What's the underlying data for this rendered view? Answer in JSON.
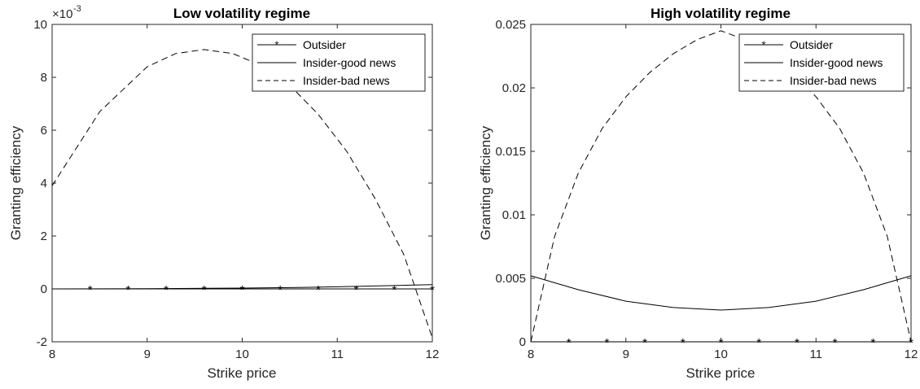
{
  "chart_data": [
    {
      "type": "line",
      "title": "Low volatility regime",
      "xlabel": "Strike price",
      "ylabel": "Granting efficiency",
      "xlim": [
        8,
        12
      ],
      "ylim": [
        -2,
        10
      ],
      "y_scale_exponent_label": "×10",
      "y_scale_exponent_power": "-3",
      "xticks": [
        8,
        9,
        10,
        11,
        12
      ],
      "xtick_labels": [
        "8",
        "9",
        "10",
        "11",
        "12"
      ],
      "yticks": [
        -2,
        0,
        2,
        4,
        6,
        8,
        10
      ],
      "ytick_labels": [
        "-2",
        "0",
        "2",
        "4",
        "6",
        "8",
        "10"
      ],
      "legend_position": "top-right",
      "grid": false,
      "series": [
        {
          "name": "Outsider",
          "style": "solid-asterisk",
          "x": [
            8.0,
            8.4,
            8.8,
            9.2,
            9.6,
            10.0,
            10.4,
            10.8,
            11.2,
            11.6,
            12.0
          ],
          "y": [
            0,
            0,
            0,
            0,
            0,
            0,
            0,
            0,
            0,
            0,
            0
          ]
        },
        {
          "name": "Insider-good news",
          "style": "solid",
          "x": [
            8.0,
            9.0,
            10.0,
            10.5,
            11.0,
            11.5,
            12.0
          ],
          "y": [
            0,
            0.01,
            0.03,
            0.05,
            0.08,
            0.12,
            0.16
          ]
        },
        {
          "name": "Insider-bad news",
          "style": "dashed",
          "x": [
            8.0,
            8.5,
            9.0,
            9.3,
            9.6,
            9.9,
            10.2,
            10.5,
            10.8,
            11.1,
            11.4,
            11.7,
            12.0
          ],
          "y": [
            3.9,
            6.7,
            8.4,
            8.9,
            9.05,
            8.9,
            8.45,
            7.7,
            6.6,
            5.2,
            3.4,
            1.3,
            -1.85
          ]
        }
      ]
    },
    {
      "type": "line",
      "title": "High volatility regime",
      "xlabel": "Strike price",
      "ylabel": "Granting efficiency",
      "xlim": [
        8,
        12
      ],
      "ylim": [
        0,
        0.025
      ],
      "xticks": [
        8,
        9,
        10,
        11,
        12
      ],
      "xtick_labels": [
        "8",
        "9",
        "10",
        "11",
        "12"
      ],
      "yticks": [
        0,
        0.005,
        0.01,
        0.015,
        0.02,
        0.025
      ],
      "ytick_labels": [
        "0",
        "0.005",
        "0.01",
        "0.015",
        "0.02",
        "0.025"
      ],
      "legend_position": "top-right",
      "grid": false,
      "series": [
        {
          "name": "Outsider",
          "style": "solid-asterisk",
          "x": [
            8.0,
            8.4,
            8.8,
            9.2,
            9.6,
            10.0,
            10.4,
            10.8,
            11.2,
            11.6,
            12.0
          ],
          "y": [
            0,
            0,
            0,
            0,
            0,
            0,
            0,
            0,
            0,
            0,
            0
          ]
        },
        {
          "name": "Insider-good news",
          "style": "solid",
          "x": [
            8.0,
            8.5,
            9.0,
            9.5,
            10.0,
            10.5,
            11.0,
            11.5,
            12.0
          ],
          "y": [
            0.0052,
            0.0041,
            0.0032,
            0.0027,
            0.0025,
            0.0027,
            0.0032,
            0.0041,
            0.0052
          ]
        },
        {
          "name": "Insider-bad news",
          "style": "dashed",
          "x": [
            8.0,
            8.25,
            8.5,
            8.75,
            9.0,
            9.25,
            9.5,
            9.75,
            10.0,
            10.25,
            10.5,
            10.75,
            11.0,
            11.25,
            11.5,
            11.75,
            12.0
          ],
          "y": [
            0.0,
            0.0083,
            0.0133,
            0.0168,
            0.0193,
            0.0212,
            0.0227,
            0.0238,
            0.0245,
            0.0238,
            0.0227,
            0.0212,
            0.0193,
            0.0168,
            0.0133,
            0.0083,
            0.0
          ]
        }
      ]
    }
  ]
}
